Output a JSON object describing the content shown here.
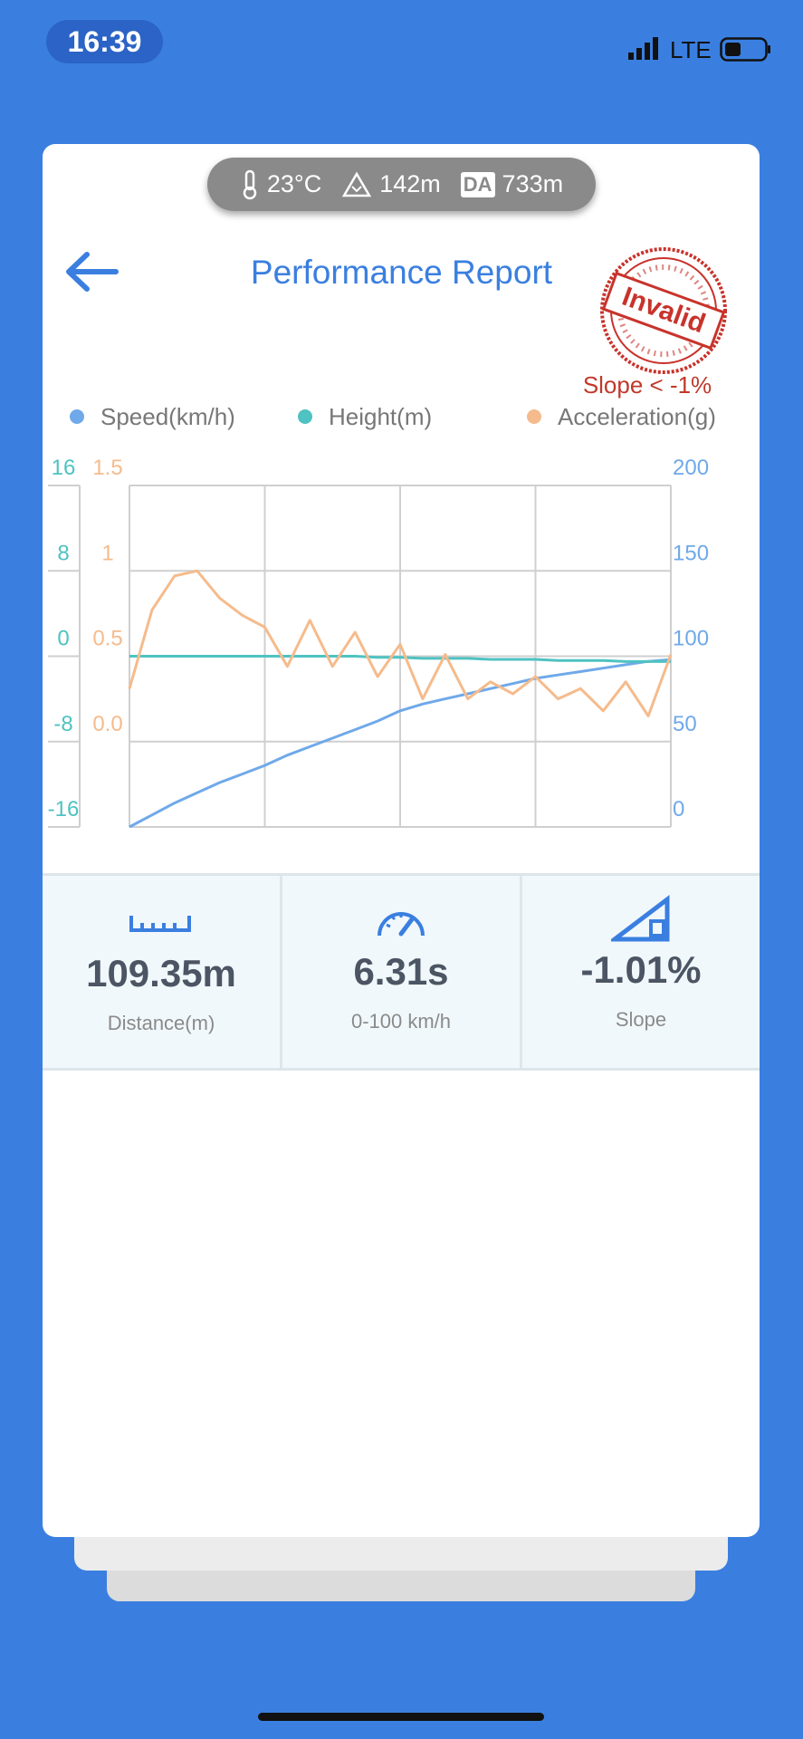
{
  "status_bar": {
    "time": "16:39",
    "network": "LTE"
  },
  "conditions": {
    "temperature": "23°C",
    "altitude": "142m",
    "da_badge": "DA",
    "density_altitude": "733m"
  },
  "header": {
    "title": "Performance Report"
  },
  "stamp": {
    "text": "Invalid",
    "note": "Slope < -1%"
  },
  "chart_data": {
    "type": "line",
    "grid": true,
    "series": [
      {
        "name": "Speed(km/h)",
        "color": "#6fa9e9",
        "axis": "y2",
        "values": [
          0,
          7,
          14,
          20,
          26,
          31,
          36,
          42,
          47,
          52,
          57,
          62,
          68,
          72,
          75,
          78,
          81,
          84,
          87,
          89,
          91,
          93,
          95,
          97,
          98
        ]
      },
      {
        "name": "Height(m)",
        "color": "#4fc2c2",
        "axis": "y",
        "values": [
          0,
          0,
          0,
          0,
          0,
          0,
          0,
          0,
          0,
          0,
          0,
          -0.1,
          -0.1,
          -0.2,
          -0.2,
          -0.2,
          -0.3,
          -0.3,
          -0.3,
          -0.4,
          -0.4,
          -0.4,
          -0.5,
          -0.5,
          -0.5
        ]
      },
      {
        "name": "Acceleration(g)",
        "color": "#f5bb8c",
        "axis": "y3",
        "values": [
          0.31,
          0.77,
          0.97,
          1.0,
          0.84,
          0.74,
          0.67,
          0.44,
          0.71,
          0.44,
          0.64,
          0.38,
          0.57,
          0.25,
          0.51,
          0.25,
          0.35,
          0.28,
          0.38,
          0.25,
          0.31,
          0.18,
          0.35,
          0.15,
          0.51
        ]
      }
    ],
    "ylim": [
      -16,
      16
    ],
    "yticks": [
      -16,
      -8,
      0,
      8,
      16
    ],
    "y3lim": [
      -0.5,
      1.5
    ],
    "y3ticks": [
      {
        "value": 0,
        "label": "0.0"
      },
      0.5,
      1,
      1.5
    ],
    "y2lim": [
      0,
      200
    ],
    "y2ticks": [
      0,
      50,
      100,
      150,
      200
    ]
  },
  "stats": [
    {
      "value": "109.35m",
      "label": "Distance(m)"
    },
    {
      "value": "6.31s",
      "label": "0-100 km/h"
    },
    {
      "value": "-1.01%",
      "label": "Slope"
    }
  ]
}
